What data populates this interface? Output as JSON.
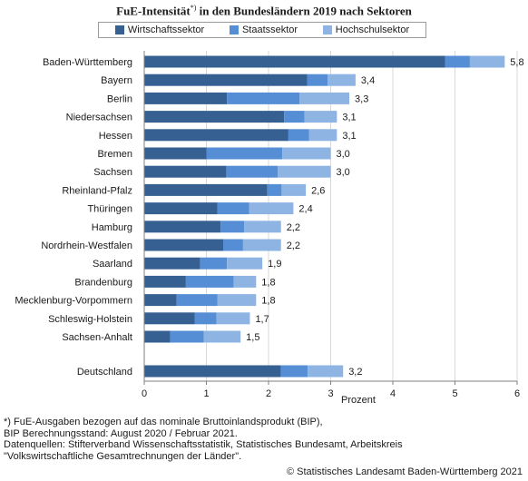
{
  "title_main": "FuE-Intensität",
  "title_sup": "*)",
  "title_rest": " in den Bundesländern 2019 nach Sektoren",
  "colors": {
    "wirtschaft": "#376092",
    "staat": "#558ed5",
    "hochschul": "#8eb4e3"
  },
  "footnote": "*) FuE-Ausgaben bezogen auf das nominale Bruttoinlandsprodukt (BIP),\nBIP Berechnungsstand: August 2020 / Februar 2021.\nDatenquellen: Stifterverband Wissenschaftsstatistik, Statistisches Bundesamt, Arbeitskreis\n\"Volkswirtschaftliche Gesamtrechnungen der Länder\".",
  "copyright": "© Statistisches Landesamt Baden-Württemberg 2021",
  "chart_data": {
    "type": "bar",
    "orientation": "horizontal",
    "stacked": true,
    "title": "FuE-Intensität*) in den Bundesländern 2019 nach Sektoren",
    "xlabel": "Prozent",
    "ylabel": "",
    "xlim": [
      0,
      6
    ],
    "xticks": [
      "0",
      "1",
      "2",
      "3",
      "4",
      "5",
      "6"
    ],
    "legend_position": "top",
    "categories": [
      "Baden-Württemberg",
      "Bayern",
      "Berlin",
      "Niedersachsen",
      "Hessen",
      "Bremen",
      "Sachsen",
      "Rheinland-Pfalz",
      "Thüringen",
      "Hamburg",
      "Nordrhein-Westfalen",
      "Saarland",
      "Brandenburg",
      "Mecklenburg-Vorpommern",
      "Schleswig-Holstein",
      "Sachsen-Anhalt",
      "Deutschland"
    ],
    "series": [
      {
        "name": "Wirtschaftssektor",
        "values": [
          4.84,
          2.62,
          1.33,
          2.25,
          2.32,
          1.0,
          1.32,
          1.98,
          1.18,
          1.23,
          1.27,
          0.9,
          0.67,
          0.52,
          0.81,
          0.42,
          2.2
        ]
      },
      {
        "name": "Staatssektor",
        "values": [
          0.4,
          0.33,
          1.17,
          0.33,
          0.33,
          1.22,
          0.83,
          0.23,
          0.51,
          0.38,
          0.32,
          0.43,
          0.77,
          0.66,
          0.35,
          0.54,
          0.43
        ]
      },
      {
        "name": "Hochschulsektor",
        "values": [
          0.56,
          0.45,
          0.8,
          0.52,
          0.45,
          0.78,
          0.85,
          0.39,
          0.71,
          0.59,
          0.61,
          0.57,
          0.36,
          0.62,
          0.54,
          0.59,
          0.57
        ]
      }
    ],
    "value_labels": [
      "5,8",
      "3,4",
      "3,3",
      "3,1",
      "3,1",
      "3,0",
      "3,0",
      "2,6",
      "2,4",
      "2,2",
      "2,2",
      "1,9",
      "1,8",
      "1,8",
      "1,7",
      "1,5",
      "3,2"
    ]
  }
}
